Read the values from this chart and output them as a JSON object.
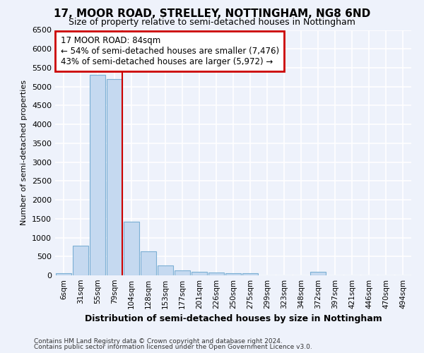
{
  "title_line1": "17, MOOR ROAD, STRELLEY, NOTTINGHAM, NG8 6ND",
  "title_line2": "Size of property relative to semi-detached houses in Nottingham",
  "xlabel": "Distribution of semi-detached houses by size in Nottingham",
  "ylabel": "Number of semi-detached properties",
  "footnote1": "Contains HM Land Registry data © Crown copyright and database right 2024.",
  "footnote2": "Contains public sector information licensed under the Open Government Licence v3.0.",
  "categories": [
    "6sqm",
    "31sqm",
    "55sqm",
    "79sqm",
    "104sqm",
    "128sqm",
    "153sqm",
    "177sqm",
    "201sqm",
    "226sqm",
    "250sqm",
    "275sqm",
    "299sqm",
    "323sqm",
    "348sqm",
    "372sqm",
    "397sqm",
    "421sqm",
    "446sqm",
    "470sqm",
    "494sqm"
  ],
  "values": [
    55,
    790,
    5310,
    5200,
    1420,
    630,
    255,
    135,
    90,
    70,
    65,
    60,
    0,
    0,
    0,
    85,
    0,
    0,
    0,
    0,
    0
  ],
  "bar_color": "#c5d9f0",
  "bar_edge_color": "#7bafd4",
  "vline_index": 3,
  "annotation_title": "17 MOOR ROAD: 84sqm",
  "annotation_line1": "← 54% of semi-detached houses are smaller (7,476)",
  "annotation_line2": "43% of semi-detached houses are larger (5,972) →",
  "annotation_box_color": "#ffffff",
  "annotation_box_edge_color": "#cc0000",
  "vline_color": "#cc0000",
  "ylim": [
    0,
    6500
  ],
  "background_color": "#eef2fb",
  "grid_color": "#ffffff"
}
